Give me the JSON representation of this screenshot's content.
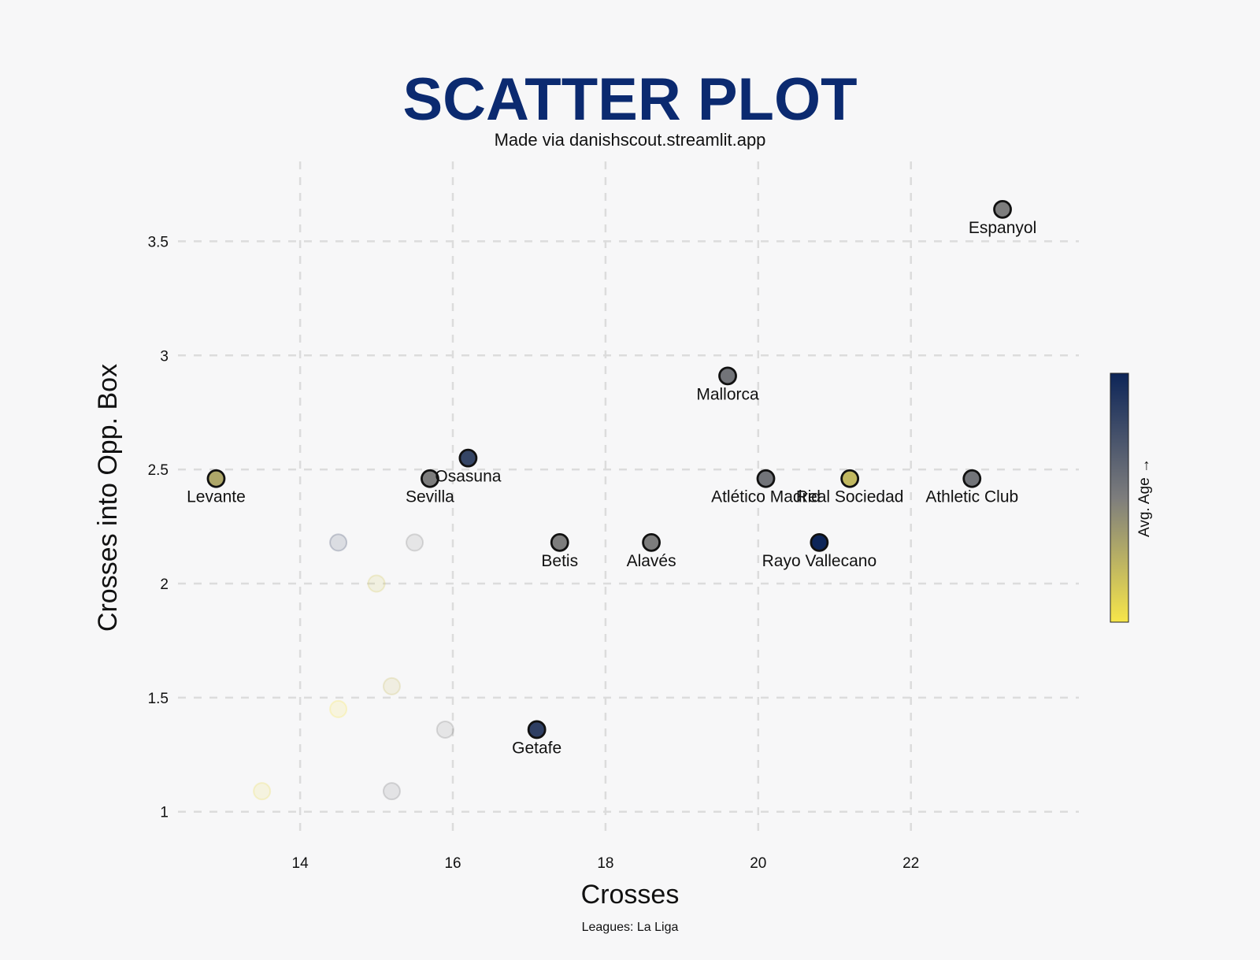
{
  "colors": {
    "title": "#0b2a70",
    "background": "#f7f7f8",
    "colormap_low": "#f7e64a",
    "colormap_mid": "#7d7d7d",
    "colormap_high": "#0d2558"
  },
  "chart_data": {
    "type": "scatter",
    "title": "SCATTER PLOT",
    "subtitle": "Made via danishscout.streamlit.app",
    "xlabel": "Crosses",
    "ylabel": "Crosses into Opp. Box",
    "footer": "Leagues: La Liga",
    "colorbar_label": "Avg. Age →",
    "xlim": [
      12.4,
      24.2
    ],
    "ylim": [
      0.83,
      3.85
    ],
    "xticks": [
      14,
      16,
      18,
      20,
      22
    ],
    "yticks": [
      1,
      1.5,
      2,
      2.5,
      3,
      3.5
    ],
    "xtick_labels": [
      "14",
      "16",
      "18",
      "20",
      "22"
    ],
    "ytick_labels": [
      "1",
      "1.5",
      "2",
      "2.5",
      "3",
      "3.5"
    ],
    "grid": true,
    "highlighted": [
      {
        "name": "Espanyol",
        "x": 23.2,
        "y": 3.64,
        "color": 0.5
      },
      {
        "name": "Mallorca",
        "x": 19.6,
        "y": 2.91,
        "color": 0.55
      },
      {
        "name": "Osasuna",
        "x": 16.2,
        "y": 2.55,
        "color": 0.82
      },
      {
        "name": "Levante",
        "x": 12.9,
        "y": 2.46,
        "color": 0.3
      },
      {
        "name": "Sevilla",
        "x": 15.7,
        "y": 2.46,
        "color": 0.5
      },
      {
        "name": "Atlético Madrid",
        "x": 20.1,
        "y": 2.46,
        "color": 0.55
      },
      {
        "name": "Real Sociedad",
        "x": 21.2,
        "y": 2.46,
        "color": 0.22
      },
      {
        "name": "Athletic Club",
        "x": 22.8,
        "y": 2.46,
        "color": 0.55
      },
      {
        "name": "Betis",
        "x": 17.4,
        "y": 2.18,
        "color": 0.5
      },
      {
        "name": "Alavés",
        "x": 18.6,
        "y": 2.18,
        "color": 0.5
      },
      {
        "name": "Rayo Vallecano",
        "x": 20.8,
        "y": 2.18,
        "color": 1.0
      },
      {
        "name": "Getafe",
        "x": 17.1,
        "y": 1.36,
        "color": 0.85
      }
    ],
    "background_points": [
      {
        "x": 14.5,
        "y": 2.18,
        "color": 0.8
      },
      {
        "x": 15.5,
        "y": 2.18,
        "color": 0.5
      },
      {
        "x": 15.0,
        "y": 2.0,
        "color": 0.15
      },
      {
        "x": 15.2,
        "y": 1.55,
        "color": 0.2
      },
      {
        "x": 14.5,
        "y": 1.45,
        "color": 0.0
      },
      {
        "x": 15.9,
        "y": 1.36,
        "color": 0.5
      },
      {
        "x": 13.5,
        "y": 1.09,
        "color": 0.05
      },
      {
        "x": 15.2,
        "y": 1.09,
        "color": 0.55
      }
    ]
  }
}
